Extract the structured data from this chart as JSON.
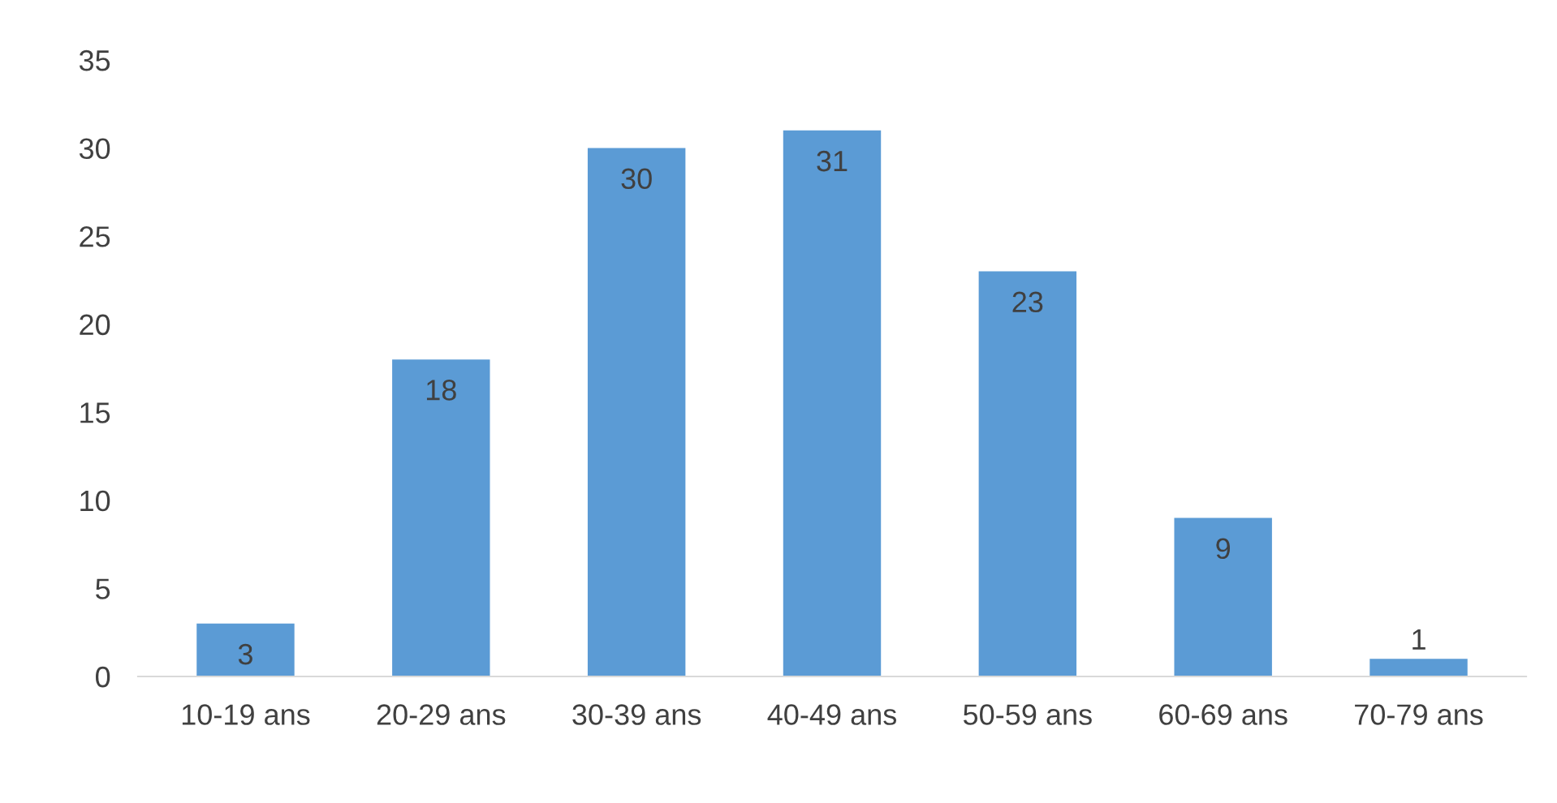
{
  "chart_data": {
    "type": "bar",
    "categories": [
      "10-19 ans",
      "20-29 ans",
      "30-39 ans",
      "40-49 ans",
      "50-59 ans",
      "60-69 ans",
      "70-79 ans"
    ],
    "values": [
      3,
      18,
      30,
      31,
      23,
      9,
      1
    ],
    "color": "#5b9bd5",
    "ylim": [
      0,
      35
    ],
    "yticks": [
      0,
      5,
      10,
      15,
      20,
      25,
      30,
      35
    ],
    "grid": false,
    "data_labels": true
  }
}
